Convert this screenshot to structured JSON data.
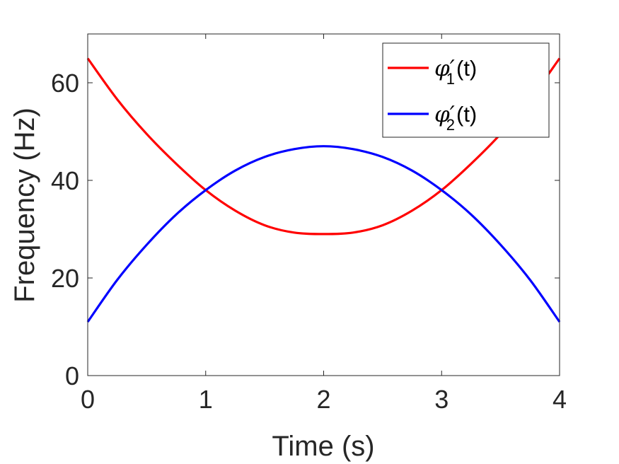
{
  "chart_data": {
    "type": "line",
    "xlabel": "Time (s)",
    "ylabel": "Frequency (Hz)",
    "xlim": [
      0,
      4
    ],
    "ylim": [
      0,
      70
    ],
    "xticks": [
      0,
      1,
      2,
      3,
      4
    ],
    "yticks": [
      0,
      20,
      40,
      60
    ],
    "grid": false,
    "legend_position": "top-right",
    "x": [
      0,
      0.25,
      0.5,
      0.75,
      1,
      1.25,
      1.5,
      1.75,
      2,
      2.25,
      2.5,
      2.75,
      3,
      3.25,
      3.5,
      3.75,
      4
    ],
    "series": [
      {
        "name": "φ'1(t)",
        "legend": {
          "symbol": "φ′",
          "subscript": "1",
          "suffix": "(t)"
        },
        "color": "#ff0000",
        "values": [
          65,
          56.6,
          49.5,
          43.4,
          38,
          33.8,
          30.8,
          29.3,
          29,
          29.3,
          30.8,
          33.8,
          38,
          43.4,
          49.5,
          56.6,
          65
        ]
      },
      {
        "name": "φ'2(t)",
        "legend": {
          "symbol": "φ′",
          "subscript": "2",
          "suffix": "(t)"
        },
        "color": "#0000ff",
        "values": [
          11,
          19.6,
          26.8,
          33,
          38,
          42,
          44.8,
          46.4,
          47,
          46.4,
          44.8,
          42,
          38,
          33,
          26.8,
          19.6,
          11
        ]
      }
    ]
  }
}
